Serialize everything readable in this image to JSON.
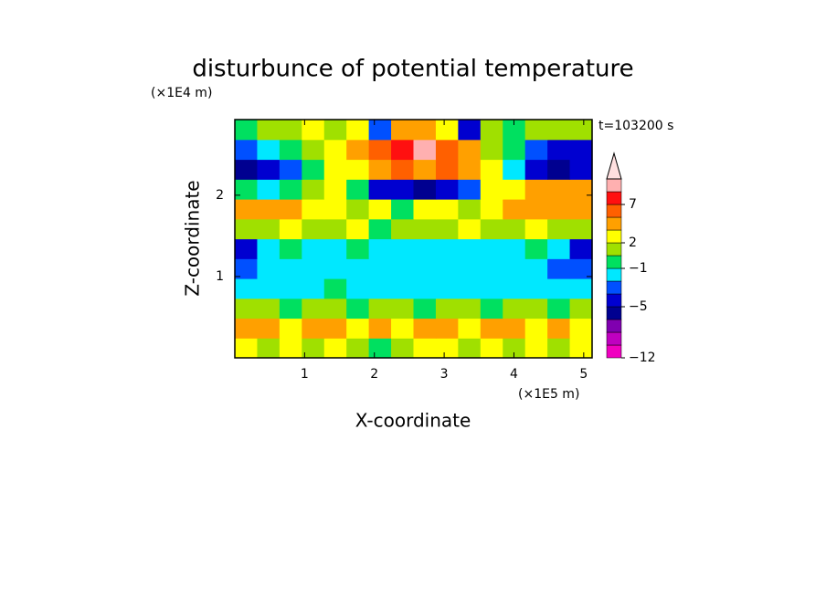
{
  "chart_data": {
    "type": "contour",
    "title": "disturbunce of potential temperature",
    "y_unit": "(×1E4 m)",
    "x_unit": "(×1E5 m)",
    "x_label": "X-coordinate",
    "y_label": "Z-coordinate",
    "time_label": "t=103200 s",
    "xlim": [
      0,
      5.12
    ],
    "ylim": [
      0,
      2.93
    ],
    "xticks": [
      1,
      2,
      3,
      4,
      5
    ],
    "yticks": [
      1,
      2
    ],
    "levels": [
      -12,
      -10,
      -8,
      -6,
      -5,
      -3,
      -2,
      -1,
      1,
      2,
      3,
      5,
      7,
      9,
      11
    ],
    "colors": [
      "#f000c0",
      "#c000c0",
      "#8000b0",
      "#000090",
      "#0000d0",
      "#0050ff",
      "#00e8ff",
      "#00e060",
      "#a0e000",
      "#ffff00",
      "#ffa000",
      "#ff6000",
      "#ff1010",
      "#ffb0b0"
    ],
    "extend_color": "#ffe0e0",
    "colorbar_ticks": [
      {
        "value": -12,
        "label": "−12"
      },
      {
        "value": -5,
        "label": "−5"
      },
      {
        "value": -1,
        "label": "−1"
      },
      2,
      7
    ],
    "z": [
      [
        2,
        1,
        2,
        1,
        2,
        1,
        0,
        1,
        2,
        2,
        1,
        2,
        1,
        2,
        1,
        2
      ],
      [
        3,
        3,
        2,
        3,
        3,
        2,
        3,
        2,
        3,
        3,
        2,
        3,
        3,
        2,
        3,
        2
      ],
      [
        1,
        1,
        0,
        1,
        1,
        0,
        1,
        1,
        0,
        1,
        1,
        0,
        1,
        1,
        0,
        1
      ],
      [
        -1.5,
        -1.5,
        -1.5,
        -1.5,
        0,
        -1.5,
        -1.5,
        -1.5,
        -1.5,
        -1.5,
        -1.5,
        -1.5,
        -1.5,
        -1.5,
        -1.5,
        -1.5
      ],
      [
        -3,
        -2,
        -1.5,
        -1.5,
        -1.5,
        -1.5,
        -1.5,
        -1.5,
        -1.5,
        -1.5,
        -1.5,
        -1.5,
        -1.5,
        -2,
        -3,
        -3
      ],
      [
        -4,
        -1.5,
        0,
        -1.5,
        -1.5,
        0,
        -1.5,
        -1.5,
        -1.5,
        -1.5,
        -1.5,
        -1.5,
        -1.5,
        0,
        -1.5,
        -4
      ],
      [
        1,
        1.5,
        2,
        1.5,
        1,
        2,
        0,
        1.5,
        1,
        1.5,
        2,
        1,
        1.5,
        2,
        1.5,
        1
      ],
      [
        4,
        4,
        3,
        2,
        2,
        1.5,
        2,
        0,
        2,
        2,
        1,
        2,
        3,
        3,
        4,
        4
      ],
      [
        0,
        -1.5,
        0,
        1.5,
        2,
        0,
        -4,
        -5,
        -6,
        -4,
        -3,
        2,
        2,
        3,
        4,
        4
      ],
      [
        -6,
        -5,
        -3,
        0,
        2,
        2,
        4,
        6,
        4,
        6,
        4,
        2,
        -1.5,
        -5,
        -6,
        -5
      ],
      [
        -3,
        -2,
        0,
        1.5,
        2,
        4,
        6,
        8,
        10,
        6,
        3,
        1.5,
        0,
        -3,
        -5,
        -4
      ],
      [
        0,
        1.5,
        1,
        2,
        1.5,
        2,
        -3,
        4,
        3,
        2,
        -4,
        1,
        0,
        1.5,
        1,
        1
      ]
    ]
  }
}
